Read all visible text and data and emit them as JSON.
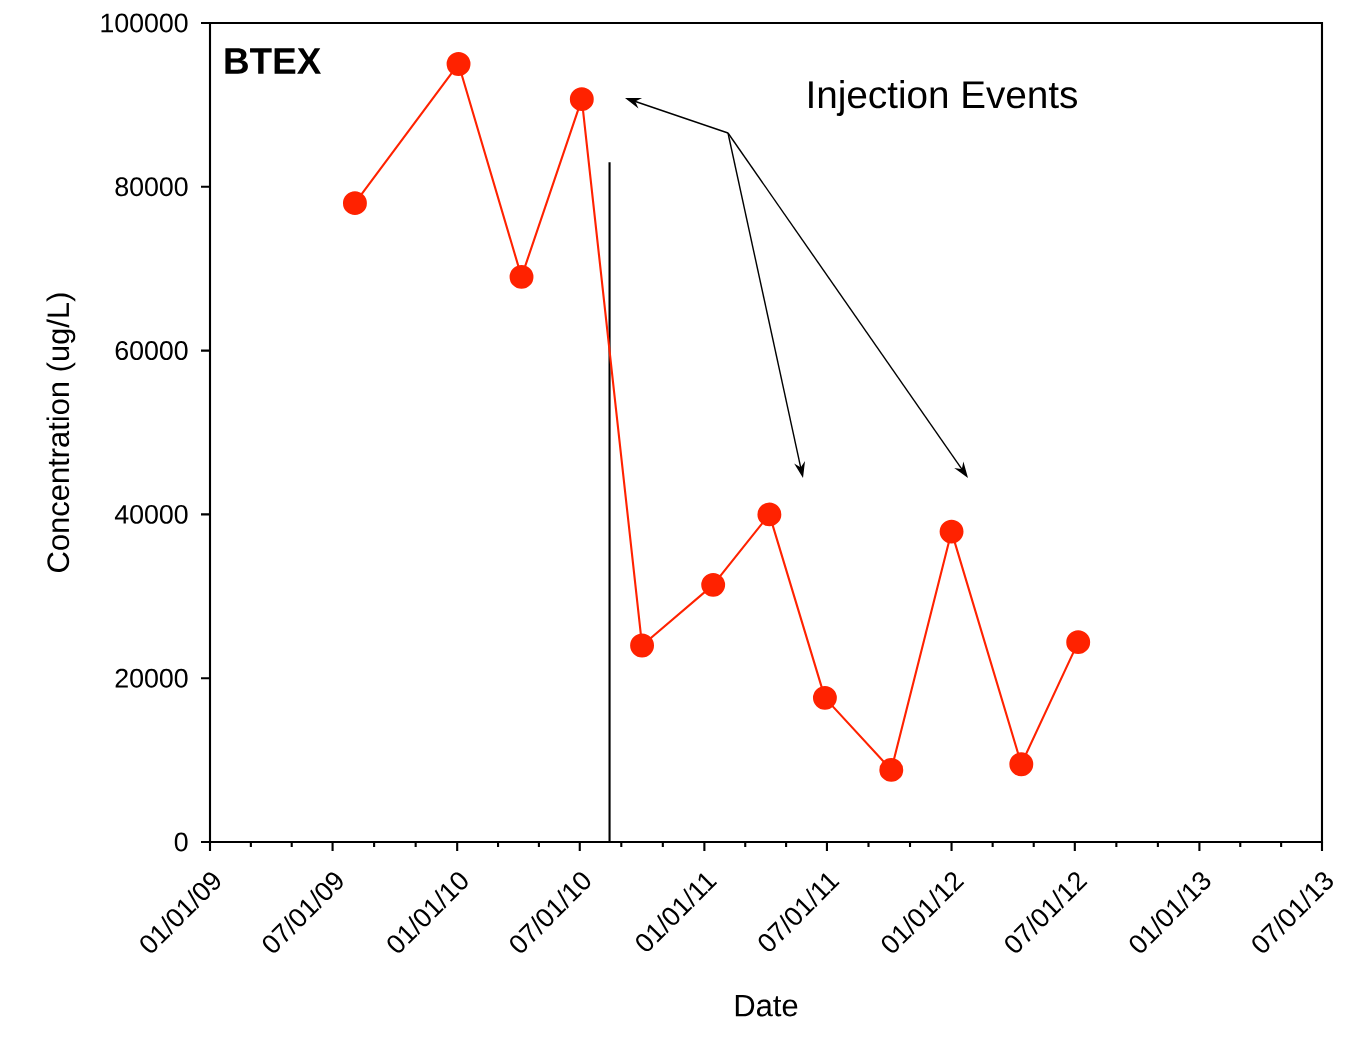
{
  "chart_data": {
    "type": "line",
    "title": "BTEX",
    "xlabel": "Date",
    "ylabel": "Concentration (ug/L)",
    "annotations": [
      "Injection Events"
    ],
    "x": [
      "2009-08-03",
      "2010-01-03",
      "2010-04-06",
      "2010-07-04",
      "2010-10-01",
      "2011-01-14",
      "2011-04-07",
      "2011-06-28",
      "2011-10-04",
      "2012-01-01",
      "2012-04-13",
      "2012-07-06"
    ],
    "series": [
      {
        "color": "#ff2200",
        "values": [
          78000,
          95000,
          69000,
          90700,
          24000,
          31400,
          40000,
          17600,
          8800,
          37900,
          9500,
          24400
        ]
      }
    ],
    "xlim": [
      "2009-01-01",
      "2013-07-01"
    ],
    "xticks": [
      {
        "value": "2009-01-01",
        "label": "01/01/09"
      },
      {
        "value": "2009-07-01",
        "label": "07/01/09"
      },
      {
        "value": "2010-01-01",
        "label": "01/01/10"
      },
      {
        "value": "2010-07-01",
        "label": "07/01/10"
      },
      {
        "value": "2011-01-01",
        "label": "01/01/11"
      },
      {
        "value": "2011-07-01",
        "label": "07/01/11"
      },
      {
        "value": "2012-01-01",
        "label": "01/01/12"
      },
      {
        "value": "2012-07-01",
        "label": "07/01/12"
      },
      {
        "value": "2013-01-01",
        "label": "01/01/13"
      },
      {
        "value": "2013-07-01",
        "label": "07/01/13"
      }
    ],
    "ylim": [
      0,
      100000
    ],
    "yticks": [
      0,
      20000,
      40000,
      60000,
      80000,
      100000
    ],
    "ref_lines": [
      {
        "axis": "x",
        "value": "2010-08-14",
        "color": "#000000"
      }
    ],
    "marker": "circle",
    "line_style": "solid"
  }
}
